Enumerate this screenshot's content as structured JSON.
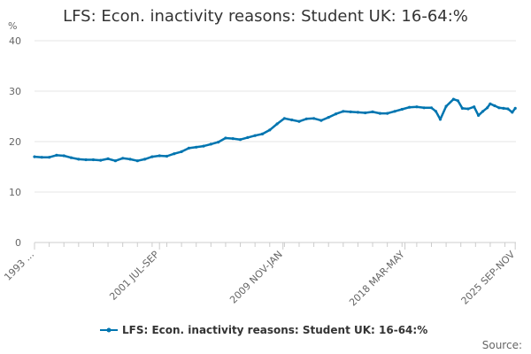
{
  "chart_data": {
    "type": "line",
    "title": "LFS: Econ. inactivity reasons: Student UK: 16-64:%",
    "ylabel": "%",
    "xlabel": "",
    "ylim": [
      0,
      40
    ],
    "yticks": [
      0,
      10,
      20,
      30,
      40
    ],
    "xlim": [
      1993.0,
      2025.75
    ],
    "xticks": [
      {
        "x": 1993.0,
        "label": "1993 ..."
      },
      {
        "x": 2001.5,
        "label": "2001 JUL-SEP"
      },
      {
        "x": 2009.9,
        "label": "2009 NOV-JAN"
      },
      {
        "x": 2018.2,
        "label": "2018 MAR-MAY"
      },
      {
        "x": 2025.7,
        "label": "2025 SEP-NOV"
      }
    ],
    "grid": true,
    "legend_position": "bottom",
    "colors": {
      "series": "#0075b0",
      "grid": "#e6e6e6",
      "axis": "#cccccc"
    },
    "series": [
      {
        "name": "LFS: Econ. inactivity reasons: Student UK: 16-64:%",
        "x": [
          1993.0,
          1993.5,
          1994.0,
          1994.5,
          1995.0,
          1995.5,
          1996.0,
          1996.5,
          1997.0,
          1997.5,
          1998.0,
          1998.5,
          1999.0,
          1999.5,
          2000.0,
          2000.5,
          2001.0,
          2001.5,
          2002.0,
          2002.5,
          2003.0,
          2003.5,
          2004.0,
          2004.5,
          2005.0,
          2005.5,
          2006.0,
          2006.5,
          2007.0,
          2007.5,
          2008.0,
          2008.5,
          2009.0,
          2009.5,
          2010.0,
          2010.5,
          2011.0,
          2011.5,
          2012.0,
          2012.5,
          2013.0,
          2013.5,
          2014.0,
          2014.5,
          2015.0,
          2015.5,
          2016.0,
          2016.5,
          2017.0,
          2017.5,
          2018.0,
          2018.5,
          2019.0,
          2019.5,
          2020.0,
          2020.3,
          2020.6,
          2021.0,
          2021.5,
          2021.8,
          2022.1,
          2022.5,
          2022.9,
          2023.2,
          2023.5,
          2023.8,
          2024.0,
          2024.3,
          2024.6,
          2024.9,
          2025.2,
          2025.5,
          2025.7
        ],
        "values": [
          17.0,
          16.9,
          16.9,
          17.3,
          17.2,
          16.8,
          16.5,
          16.4,
          16.4,
          16.3,
          16.6,
          16.2,
          16.7,
          16.5,
          16.2,
          16.5,
          17.0,
          17.2,
          17.1,
          17.6,
          18.0,
          18.7,
          18.9,
          19.1,
          19.5,
          19.9,
          20.7,
          20.6,
          20.4,
          20.8,
          21.2,
          21.5,
          22.3,
          23.5,
          24.6,
          24.3,
          24.0,
          24.5,
          24.6,
          24.2,
          24.8,
          25.5,
          26.0,
          25.9,
          25.8,
          25.7,
          25.9,
          25.6,
          25.6,
          26.0,
          26.4,
          26.8,
          26.9,
          26.7,
          26.7,
          26.0,
          24.4,
          27.0,
          28.4,
          28.1,
          26.6,
          26.5,
          26.9,
          25.2,
          26.0,
          26.7,
          27.5,
          27.1,
          26.7,
          26.6,
          26.5,
          25.8,
          26.6
        ]
      }
    ]
  },
  "footer": {
    "source_label": "Source:"
  }
}
